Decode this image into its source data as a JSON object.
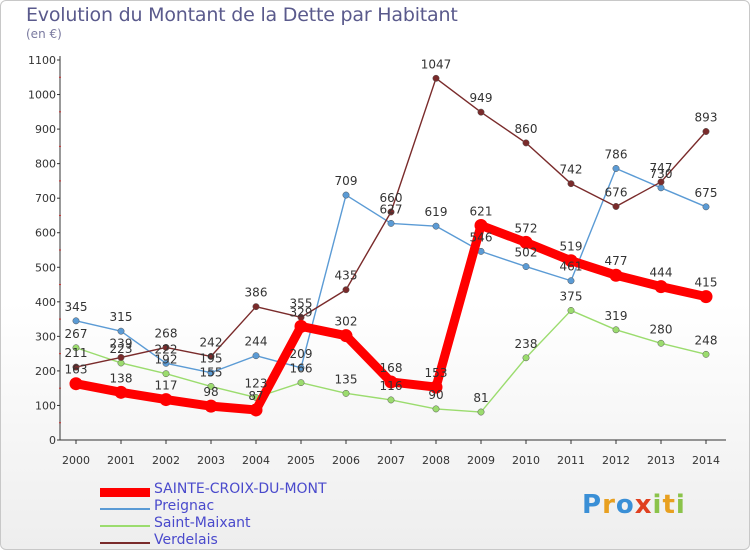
{
  "header": {
    "title": "Evolution du Montant de la Dette par Habitant",
    "subtitle": "(en €)"
  },
  "logo": {
    "text": "Proxiti",
    "colors": [
      "#3a8fd6",
      "#e8a020",
      "#3a8fd6",
      "#e04020",
      "#8bc34a",
      "#e8a020",
      "#8bc34a"
    ]
  },
  "chart_data": {
    "type": "line",
    "title": "Evolution du Montant de la Dette par Habitant",
    "subtitle": "(en €)",
    "xlabel": "",
    "ylabel": "",
    "x": [
      "2000",
      "2001",
      "2002",
      "2003",
      "2004",
      "2005",
      "2006",
      "2007",
      "2008",
      "2009",
      "2010",
      "2011",
      "2012",
      "2013",
      "2014"
    ],
    "ylim": [
      0,
      1100
    ],
    "yticks": [
      0,
      100,
      200,
      300,
      400,
      500,
      600,
      700,
      800,
      900,
      1000,
      1100
    ],
    "grid": false,
    "legend_position": "bottom-left",
    "series": [
      {
        "name": "SAINTE-CROIX-DU-MONT",
        "color": "#ff0000",
        "emphasis": true,
        "values": [
          163,
          138,
          117,
          98,
          87,
          329,
          302,
          168,
          153,
          621,
          572,
          519,
          477,
          444,
          415
        ],
        "labels": [
          "163",
          "138",
          "117",
          "98",
          "87",
          "329",
          "302",
          "168",
          "153",
          "621",
          "572",
          "519",
          "477",
          "444",
          "415"
        ]
      },
      {
        "name": "Preignac",
        "color": "#5b9bd5",
        "emphasis": false,
        "values": [
          345,
          315,
          222,
          195,
          244,
          209,
          709,
          627,
          619,
          546,
          502,
          461,
          786,
          730,
          675
        ],
        "labels": [
          "345",
          "315",
          "222",
          "195",
          "244",
          "209",
          "709",
          "627",
          "619",
          "546",
          "502",
          "461",
          "786",
          "730",
          "675"
        ]
      },
      {
        "name": "Saint-Maixant",
        "color": "#9bdc6e",
        "emphasis": false,
        "values": [
          267,
          223,
          192,
          155,
          123,
          166,
          135,
          116,
          90,
          81,
          238,
          375,
          319,
          280,
          248
        ],
        "labels": [
          "267",
          "223",
          "192",
          "155",
          "123",
          "166",
          "135",
          "116",
          "90",
          "81",
          "238",
          "375",
          "319",
          "280",
          "248"
        ]
      },
      {
        "name": "Verdelais",
        "color": "#7a2b2b",
        "emphasis": false,
        "values": [
          211,
          239,
          268,
          242,
          386,
          355,
          435,
          660,
          1047,
          949,
          860,
          742,
          676,
          747,
          893
        ],
        "labels": [
          "211",
          "239",
          "268",
          "242",
          "386",
          "355",
          "435",
          "660",
          "1047",
          "949",
          "860",
          "742",
          "676",
          "747",
          "893"
        ]
      }
    ]
  }
}
